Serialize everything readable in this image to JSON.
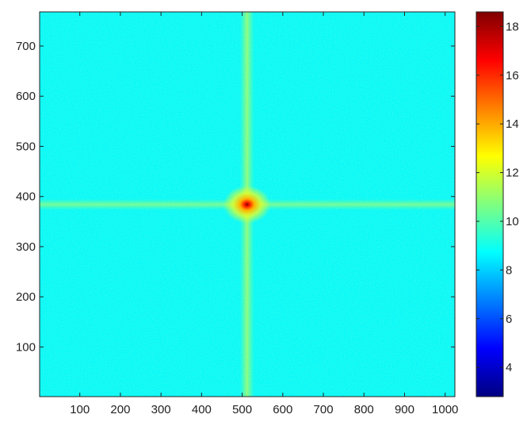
{
  "chart_data": {
    "type": "heatmap",
    "title": "",
    "xlabel": "",
    "ylabel": "",
    "xlim": [
      1,
      1024
    ],
    "ylim": [
      1,
      768
    ],
    "xticks": [
      100,
      200,
      300,
      400,
      500,
      600,
      700,
      800,
      900,
      1000
    ],
    "yticks": [
      100,
      200,
      300,
      400,
      500,
      600,
      700
    ],
    "colorbar": {
      "min": 2.8,
      "max": 18.6,
      "ticks": [
        4,
        6,
        8,
        10,
        12,
        14,
        16,
        18
      ],
      "colormap": "jet"
    },
    "background_value": 8.8,
    "peak": {
      "x": 512,
      "y": 384,
      "value": 18.5
    },
    "cross_value_near_center": 12.5,
    "vertical_line_x": 512,
    "horizontal_line_y": 384,
    "grid": false,
    "legend": "colorbar-right"
  }
}
